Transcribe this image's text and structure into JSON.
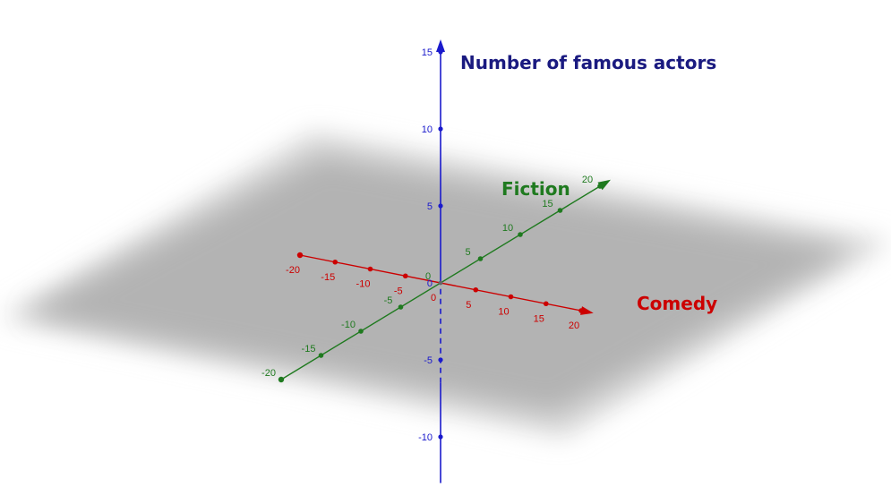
{
  "axes": {
    "x": {
      "label": "Comedy",
      "color": "#cc0000",
      "tick_values": [
        -20,
        -15,
        -10,
        -5,
        0,
        5,
        10,
        15,
        20
      ],
      "tick_labels": [
        "-20",
        "-15",
        "-10",
        "-5",
        "0",
        "5",
        "10",
        "15",
        "20"
      ]
    },
    "y": {
      "label": "Fiction",
      "color": "#1f7a1f",
      "tick_values": [
        -20,
        -15,
        -10,
        -5,
        0,
        5,
        10,
        15,
        20
      ],
      "tick_labels": [
        "-20",
        "-15",
        "-10",
        "-5",
        "0",
        "5",
        "10",
        "15",
        "20"
      ]
    },
    "z": {
      "label": "Number of famous actors",
      "color": "#1a1acc",
      "tick_values": [
        -10,
        -5,
        0,
        5,
        10,
        15
      ],
      "tick_labels": [
        "-10",
        "-5",
        "0",
        "5",
        "10",
        "15"
      ]
    }
  },
  "plane": {
    "color": "#b3b3b3"
  },
  "range": {
    "x": [
      -20,
      20
    ],
    "y": [
      -20,
      20
    ],
    "z": [
      -13,
      15
    ]
  }
}
